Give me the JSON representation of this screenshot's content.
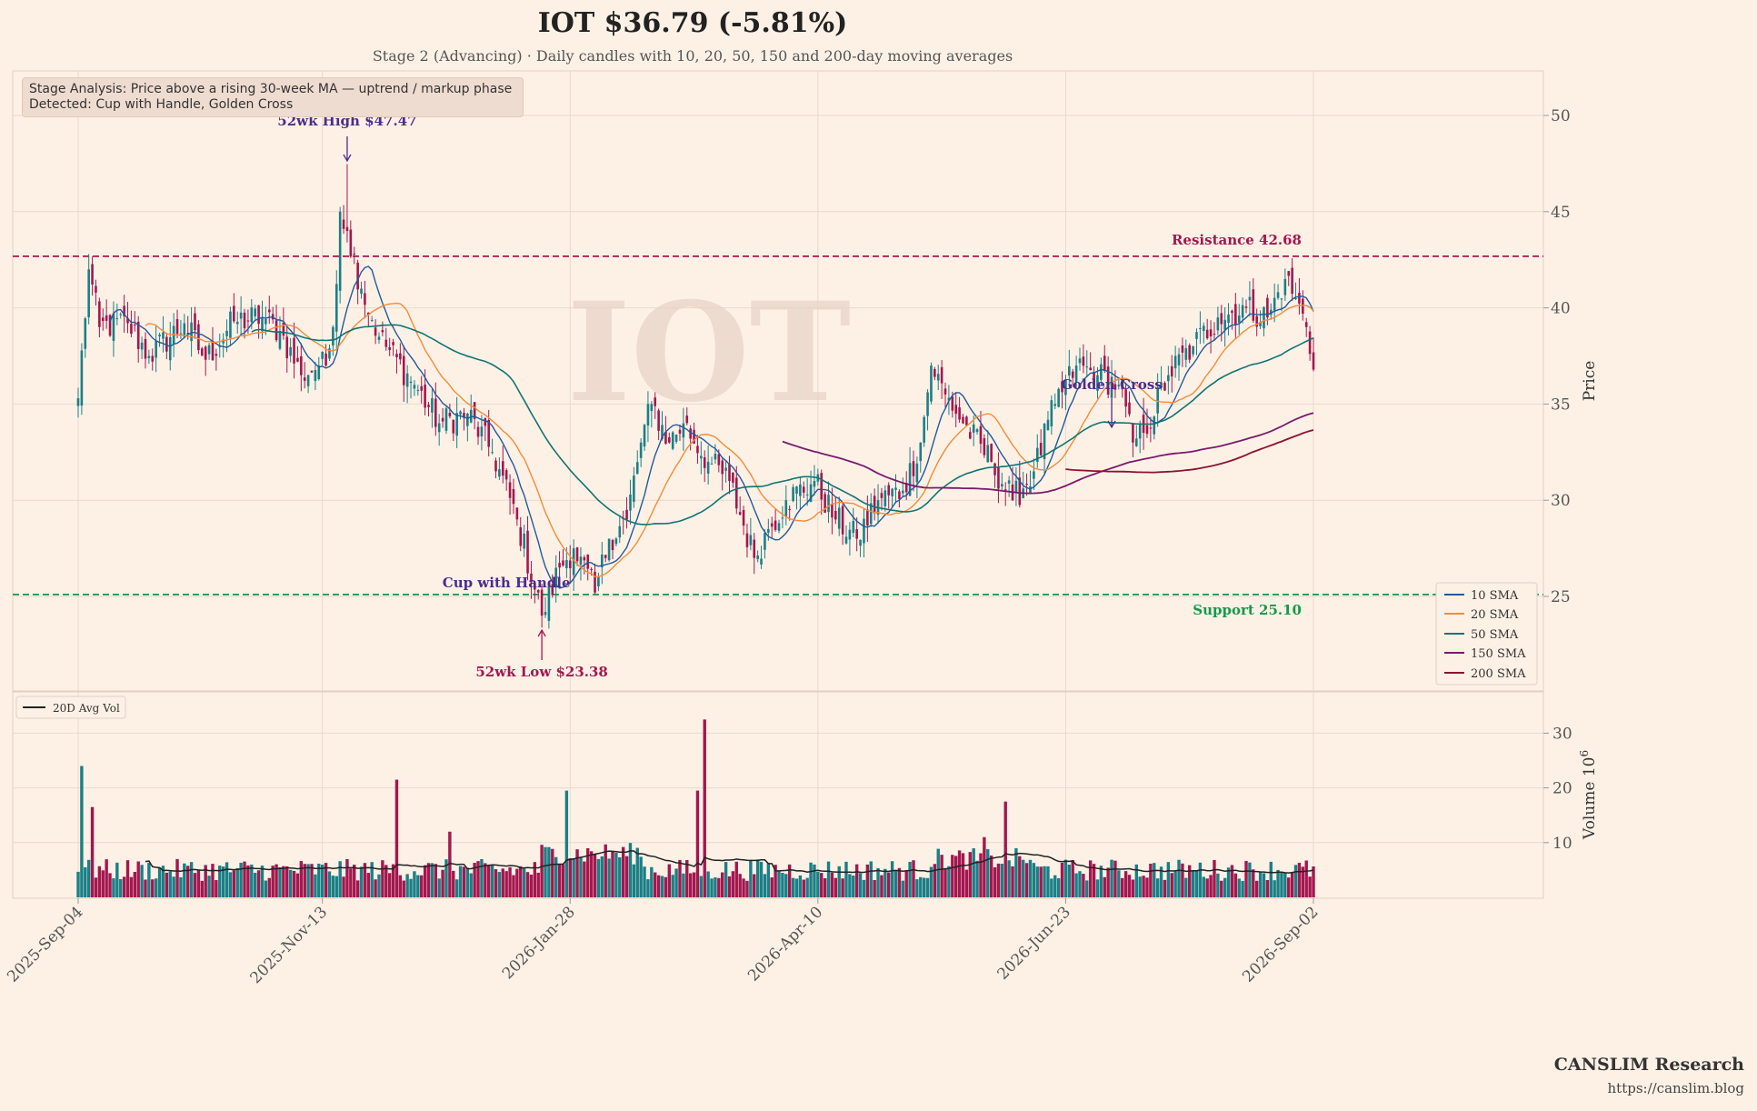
{
  "header": {
    "title": "IOT  $36.79  (-5.81%)",
    "subtitle": "Stage 2 (Advancing)  ·  Daily candles with 10, 20, 50, 150 and 200-day moving averages"
  },
  "stage_box": {
    "line1": "Stage Analysis: Price above a rising 30-week MA — uptrend / markup phase",
    "line2": "Detected: Cup with Handle, Golden Cross"
  },
  "watermark": "IOT",
  "branding": {
    "name": "CANSLIM Research",
    "url": "https://canslim.blog"
  },
  "colors": {
    "background": "#fdf1e6",
    "up": "#1a7f86",
    "down": "#a3174f",
    "sma10": "#1f5a9e",
    "sma20": "#f28c38",
    "sma50": "#127374",
    "sma150": "#7a1a6e",
    "sma200": "#8e1230",
    "resistance": "#a3174f",
    "support": "#149a4a",
    "annotation": "#4b2d8a"
  },
  "chart_data": {
    "type": "candlestick",
    "ticker": "IOT",
    "x_dates": [
      "2025-Sep-04",
      "2025-Nov-13",
      "2026-Jan-28",
      "2026-Apr-10",
      "2026-Jun-23",
      "2026-Sep-02"
    ],
    "price_axis": {
      "label": "Price",
      "ylim": [
        20,
        52
      ],
      "ticks": [
        25,
        30,
        35,
        40,
        45,
        50
      ]
    },
    "volume_axis": {
      "label": "Volume 10^6",
      "ylim": [
        0,
        34
      ],
      "ticks": [
        10,
        20,
        30
      ]
    },
    "close_anchors": [
      {
        "day": 0,
        "close": 35.3
      },
      {
        "day": 3,
        "close": 42.0
      },
      {
        "day": 6,
        "close": 39.0
      },
      {
        "day": 14,
        "close": 39.2
      },
      {
        "day": 20,
        "close": 37.5
      },
      {
        "day": 30,
        "close": 39.2
      },
      {
        "day": 36,
        "close": 37.3
      },
      {
        "day": 44,
        "close": 39.3
      },
      {
        "day": 52,
        "close": 39.5
      },
      {
        "day": 57,
        "close": 38.8
      },
      {
        "day": 63,
        "close": 36.5
      },
      {
        "day": 68,
        "close": 37.0
      },
      {
        "day": 70,
        "close": 37.0
      },
      {
        "day": 72,
        "close": 39.0
      },
      {
        "day": 74,
        "close": 45.0
      },
      {
        "day": 76,
        "close": 44.0
      },
      {
        "day": 80,
        "close": 41.0
      },
      {
        "day": 85,
        "close": 38.5
      },
      {
        "day": 95,
        "close": 36.0
      },
      {
        "day": 102,
        "close": 34.0
      },
      {
        "day": 110,
        "close": 34.5
      },
      {
        "day": 117,
        "close": 32.5
      },
      {
        "day": 124,
        "close": 29.0
      },
      {
        "day": 131,
        "close": 24.0
      },
      {
        "day": 136,
        "close": 26.5
      },
      {
        "day": 140,
        "close": 27.5
      },
      {
        "day": 146,
        "close": 25.2
      },
      {
        "day": 150,
        "close": 28.0
      },
      {
        "day": 155,
        "close": 29.0
      },
      {
        "day": 159,
        "close": 33.0
      },
      {
        "day": 162,
        "close": 35.0
      },
      {
        "day": 167,
        "close": 33.0
      },
      {
        "day": 171,
        "close": 34.0
      },
      {
        "day": 178,
        "close": 32.0
      },
      {
        "day": 184,
        "close": 31.0
      },
      {
        "day": 191,
        "close": 27.0
      },
      {
        "day": 195,
        "close": 28.5
      },
      {
        "day": 200,
        "close": 30.0
      },
      {
        "day": 208,
        "close": 31.0
      },
      {
        "day": 214,
        "close": 29.0
      },
      {
        "day": 220,
        "close": 28.0
      },
      {
        "day": 226,
        "close": 30.0
      },
      {
        "day": 233,
        "close": 30.5
      },
      {
        "day": 238,
        "close": 33.0
      },
      {
        "day": 241,
        "close": 37.0
      },
      {
        "day": 245,
        "close": 35.5
      },
      {
        "day": 250,
        "close": 34.0
      },
      {
        "day": 258,
        "close": 32.0
      },
      {
        "day": 264,
        "close": 30.0
      },
      {
        "day": 270,
        "close": 31.5
      },
      {
        "day": 276,
        "close": 35.0
      },
      {
        "day": 282,
        "close": 37.0
      },
      {
        "day": 288,
        "close": 36.5
      },
      {
        "day": 294,
        "close": 36.0
      },
      {
        "day": 298,
        "close": 33.0
      },
      {
        "day": 301,
        "close": 33.5
      },
      {
        "day": 308,
        "close": 36.5
      },
      {
        "day": 315,
        "close": 38.0
      },
      {
        "day": 322,
        "close": 39.5
      },
      {
        "day": 330,
        "close": 40.0
      },
      {
        "day": 336,
        "close": 39.5
      },
      {
        "day": 341,
        "close": 41.5
      },
      {
        "day": 344,
        "close": 40.5
      },
      {
        "day": 347,
        "close": 39.0
      },
      {
        "day": 349,
        "close": 36.79
      }
    ],
    "volume_spikes": [
      {
        "day": 1,
        "volume": 24
      },
      {
        "day": 4,
        "volume": 16.5
      },
      {
        "day": 90,
        "volume": 21.5
      },
      {
        "day": 105,
        "volume": 12
      },
      {
        "day": 138,
        "volume": 19.5
      },
      {
        "day": 175,
        "volume": 19.5
      },
      {
        "day": 177,
        "volume": 32.5
      },
      {
        "day": 262,
        "volume": 17.5
      },
      {
        "day": 256,
        "volume": 11
      }
    ],
    "moving_averages": [
      "10 SMA",
      "20 SMA",
      "50 SMA",
      "150 SMA",
      "200 SMA"
    ],
    "volume_series": "20D Avg Vol",
    "resistance": 42.68,
    "support": 25.1,
    "annotations": {
      "high_label": "52wk High $47.47",
      "high_value": 47.47,
      "high_day": 76,
      "low_label": "52wk Low $23.38",
      "low_value": 23.38,
      "low_day": 131,
      "resistance_label": "Resistance 42.68",
      "support_label": "Support 25.10",
      "cup_label": "Cup with Handle",
      "golden_cross_label": "Golden Cross",
      "golden_cross_day": 292
    },
    "legend": [
      "10 SMA",
      "20 SMA",
      "50 SMA",
      "150 SMA",
      "200 SMA"
    ],
    "legend_position": "lower-right",
    "volume_legend_position": "upper-left",
    "grid": true
  }
}
